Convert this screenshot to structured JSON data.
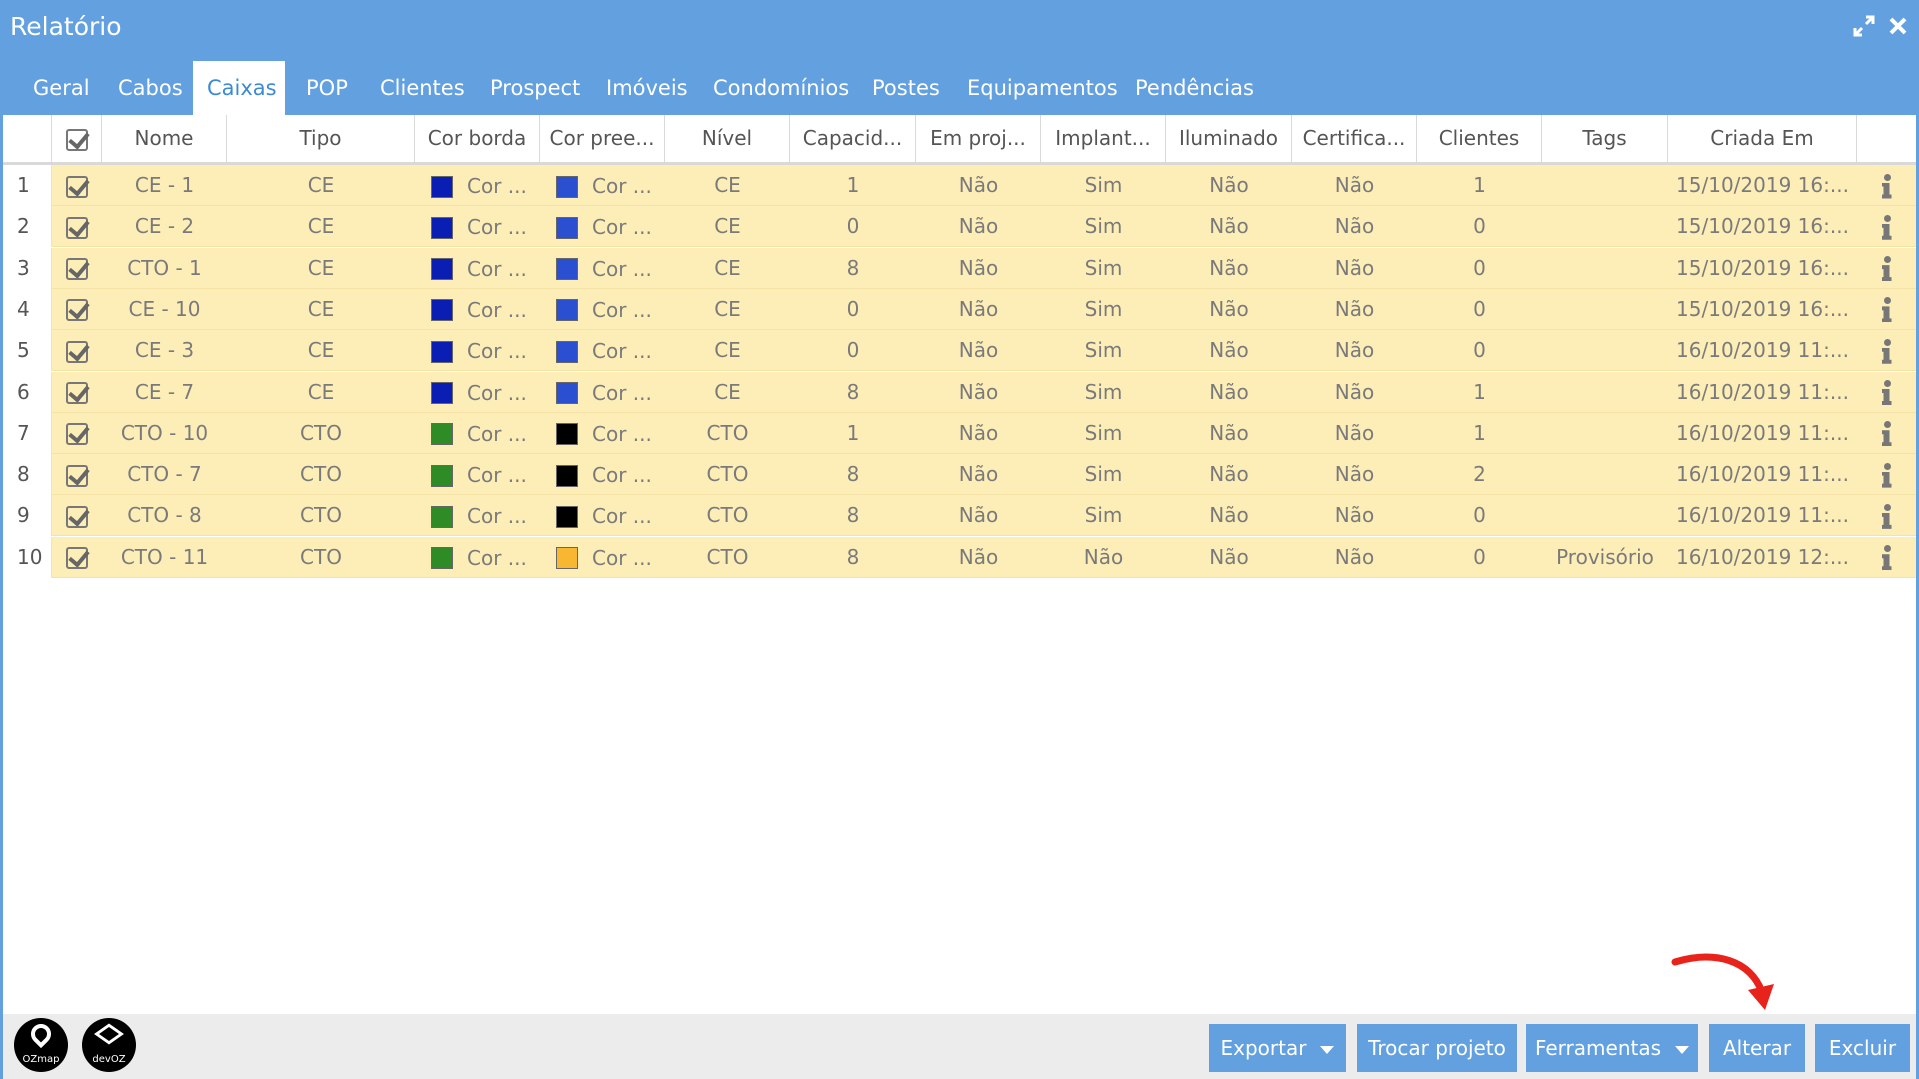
{
  "window": {
    "title": "Relatório"
  },
  "tabs": [
    {
      "label": "Geral",
      "active": false
    },
    {
      "label": "Cabos",
      "active": false
    },
    {
      "label": "Caixas",
      "active": true
    },
    {
      "label": "POP",
      "active": false
    },
    {
      "label": "Clientes",
      "active": false
    },
    {
      "label": "Prospect",
      "active": false
    },
    {
      "label": "Imóveis",
      "active": false
    },
    {
      "label": "Condomínios",
      "active": false
    },
    {
      "label": "Postes",
      "active": false
    },
    {
      "label": "Equipamentos",
      "active": false
    },
    {
      "label": "Pendências",
      "active": false
    }
  ],
  "columns": [
    "Nome",
    "Tipo",
    "Cor borda",
    "Cor pree...",
    "Nível",
    "Capacid...",
    "Em proj...",
    "Implant...",
    "Iluminado",
    "Certifica...",
    "Clientes",
    "Tags",
    "Criada Em"
  ],
  "rows": [
    {
      "num": "1",
      "nome": "CE - 1",
      "tipo": "CE",
      "cor_borda": "Cor ...",
      "cor_borda_color": "#0a1eb4",
      "cor_pree": "Cor ...",
      "cor_pree_color": "#2a4fd0",
      "nivel": "CE",
      "capacidade": "1",
      "em_projeto": "Não",
      "implantado": "Sim",
      "iluminado": "Não",
      "certificado": "Não",
      "clientes": "1",
      "tags": "",
      "criada_em": "15/10/2019 16:..."
    },
    {
      "num": "2",
      "nome": "CE - 2",
      "tipo": "CE",
      "cor_borda": "Cor ...",
      "cor_borda_color": "#0a1eb4",
      "cor_pree": "Cor ...",
      "cor_pree_color": "#2a4fd0",
      "nivel": "CE",
      "capacidade": "0",
      "em_projeto": "Não",
      "implantado": "Sim",
      "iluminado": "Não",
      "certificado": "Não",
      "clientes": "0",
      "tags": "",
      "criada_em": "15/10/2019 16:..."
    },
    {
      "num": "3",
      "nome": "CTO - 1",
      "tipo": "CE",
      "cor_borda": "Cor ...",
      "cor_borda_color": "#0a1eb4",
      "cor_pree": "Cor ...",
      "cor_pree_color": "#2a4fd0",
      "nivel": "CE",
      "capacidade": "8",
      "em_projeto": "Não",
      "implantado": "Sim",
      "iluminado": "Não",
      "certificado": "Não",
      "clientes": "0",
      "tags": "",
      "criada_em": "15/10/2019 16:..."
    },
    {
      "num": "4",
      "nome": "CE - 10",
      "tipo": "CE",
      "cor_borda": "Cor ...",
      "cor_borda_color": "#0a1eb4",
      "cor_pree": "Cor ...",
      "cor_pree_color": "#2a4fd0",
      "nivel": "CE",
      "capacidade": "0",
      "em_projeto": "Não",
      "implantado": "Sim",
      "iluminado": "Não",
      "certificado": "Não",
      "clientes": "0",
      "tags": "",
      "criada_em": "15/10/2019 16:..."
    },
    {
      "num": "5",
      "nome": "CE - 3",
      "tipo": "CE",
      "cor_borda": "Cor ...",
      "cor_borda_color": "#0a1eb4",
      "cor_pree": "Cor ...",
      "cor_pree_color": "#2a4fd0",
      "nivel": "CE",
      "capacidade": "0",
      "em_projeto": "Não",
      "implantado": "Sim",
      "iluminado": "Não",
      "certificado": "Não",
      "clientes": "0",
      "tags": "",
      "criada_em": "16/10/2019 11:..."
    },
    {
      "num": "6",
      "nome": "CE - 7",
      "tipo": "CE",
      "cor_borda": "Cor ...",
      "cor_borda_color": "#0a1eb4",
      "cor_pree": "Cor ...",
      "cor_pree_color": "#2a4fd0",
      "nivel": "CE",
      "capacidade": "8",
      "em_projeto": "Não",
      "implantado": "Sim",
      "iluminado": "Não",
      "certificado": "Não",
      "clientes": "1",
      "tags": "",
      "criada_em": "16/10/2019 11:..."
    },
    {
      "num": "7",
      "nome": "CTO - 10",
      "tipo": "CTO",
      "cor_borda": "Cor ...",
      "cor_borda_color": "#2e8b25",
      "cor_pree": "Cor ...",
      "cor_pree_color": "#000000",
      "nivel": "CTO",
      "capacidade": "1",
      "em_projeto": "Não",
      "implantado": "Sim",
      "iluminado": "Não",
      "certificado": "Não",
      "clientes": "1",
      "tags": "",
      "criada_em": "16/10/2019 11:..."
    },
    {
      "num": "8",
      "nome": "CTO - 7",
      "tipo": "CTO",
      "cor_borda": "Cor ...",
      "cor_borda_color": "#2e8b25",
      "cor_pree": "Cor ...",
      "cor_pree_color": "#000000",
      "nivel": "CTO",
      "capacidade": "8",
      "em_projeto": "Não",
      "implantado": "Sim",
      "iluminado": "Não",
      "certificado": "Não",
      "clientes": "2",
      "tags": "",
      "criada_em": "16/10/2019 11:..."
    },
    {
      "num": "9",
      "nome": "CTO - 8",
      "tipo": "CTO",
      "cor_borda": "Cor ...",
      "cor_borda_color": "#2e8b25",
      "cor_pree": "Cor ...",
      "cor_pree_color": "#000000",
      "nivel": "CTO",
      "capacidade": "8",
      "em_projeto": "Não",
      "implantado": "Sim",
      "iluminado": "Não",
      "certificado": "Não",
      "clientes": "0",
      "tags": "",
      "criada_em": "16/10/2019 11:..."
    },
    {
      "num": "10",
      "nome": "CTO - 11",
      "tipo": "CTO",
      "cor_borda": "Cor ...",
      "cor_borda_color": "#2e8b25",
      "cor_pree": "Cor ...",
      "cor_pree_color": "#f7b733",
      "nivel": "CTO",
      "capacidade": "8",
      "em_projeto": "Não",
      "implantado": "Não",
      "iluminado": "Não",
      "certificado": "Não",
      "clientes": "0",
      "tags": "Provisório",
      "criada_em": "16/10/2019 12:..."
    }
  ],
  "footer": {
    "logo_ozmap": "OZmap",
    "logo_devoz": "devOZ",
    "buttons": {
      "exportar": "Exportar",
      "trocar_projeto": "Trocar projeto",
      "ferramentas": "Ferramentas",
      "alterar": "Alterar",
      "excluir": "Excluir"
    }
  },
  "colors": {
    "accent": "#62a0df",
    "row_highlight": "#fdeeb8",
    "annotation_arrow": "#e8231c"
  }
}
